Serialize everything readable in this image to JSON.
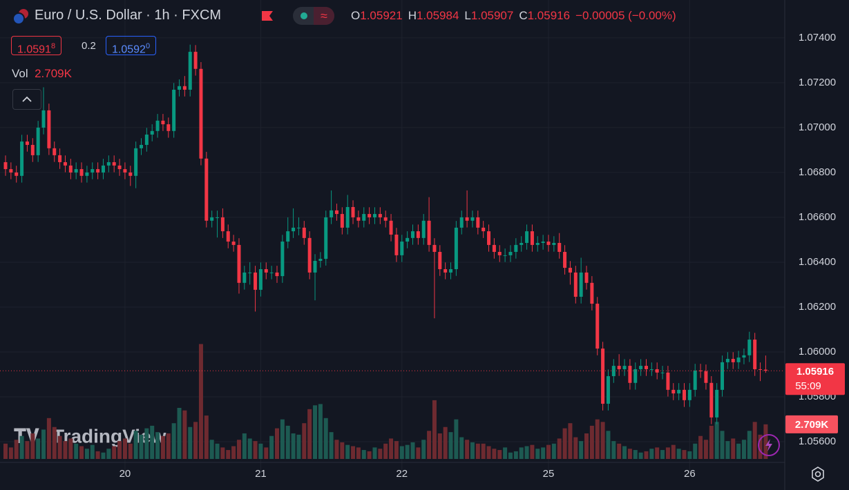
{
  "header": {
    "symbol": "Euro / U.S. Dollar · 1h · FXCM",
    "ohlc": [
      {
        "label": "O",
        "value": "1.05921"
      },
      {
        "label": "H",
        "value": "1.05984"
      },
      {
        "label": "L",
        "value": "1.05907"
      },
      {
        "label": "C",
        "value": "1.05916"
      }
    ],
    "change": "−0.00005 (−0.00%)",
    "bid": {
      "main": "1.0591",
      "pip": "8"
    },
    "spread": "0.2",
    "ask": {
      "main": "1.0592",
      "pip": "0"
    },
    "volume_label": "Vol",
    "volume_value": "2.709K"
  },
  "chart_data": {
    "type": "candlestick",
    "categories": [
      null,
      null,
      null,
      null,
      null,
      null,
      null,
      null,
      null,
      null,
      null,
      null,
      null,
      null,
      null,
      null,
      null,
      null,
      null,
      null,
      null,
      null,
      "20",
      null,
      null,
      null,
      null,
      null,
      null,
      null,
      null,
      null,
      null,
      null,
      null,
      null,
      null,
      null,
      null,
      null,
      null,
      null,
      null,
      null,
      null,
      null,
      null,
      "21",
      null,
      null,
      null,
      null,
      null,
      null,
      null,
      null,
      null,
      null,
      null,
      null,
      null,
      null,
      null,
      null,
      null,
      null,
      null,
      null,
      null,
      null,
      null,
      null,
      null,
      "22",
      null,
      null,
      null,
      null,
      null,
      null,
      null,
      null,
      null,
      null,
      null,
      null,
      null,
      null,
      null,
      null,
      null,
      null,
      null,
      null,
      null,
      null,
      null,
      null,
      null,
      null,
      "25",
      null,
      null,
      null,
      null,
      null,
      null,
      null,
      null,
      null,
      null,
      null,
      null,
      null,
      null,
      null,
      null,
      null,
      null,
      null,
      null,
      null,
      null,
      null,
      null,
      null,
      "26",
      null,
      null,
      null,
      null,
      null,
      null,
      null,
      null,
      null,
      null,
      null,
      null,
      null,
      null
    ],
    "open": [
      1.06846,
      1.06815,
      1.068,
      1.06785,
      1.06938,
      1.06923,
      1.06877,
      1.07,
      1.07077,
      1.06908,
      1.06877,
      1.06846,
      1.06831,
      1.068,
      1.06815,
      1.06785,
      1.068,
      1.06815,
      1.068,
      1.06831,
      1.06846,
      1.06831,
      1.06815,
      1.068,
      1.06785,
      1.06908,
      1.06923,
      1.06969,
      1.06985,
      1.07031,
      1.07015,
      1.06985,
      1.07169,
      1.07185,
      1.07169,
      1.07338,
      1.07262,
      1.06862,
      1.06585,
      1.066,
      1.066,
      1.06538,
      1.06492,
      1.06477,
      1.06308,
      1.06354,
      1.06354,
      1.06277,
      1.06369,
      1.06354,
      1.06354,
      1.06338,
      1.06492,
      1.06538,
      1.06554,
      1.06554,
      1.06508,
      1.06354,
      1.06406,
      1.06415,
      1.066,
      1.06631,
      1.06615,
      1.06554,
      1.06646,
      1.066,
      1.06585,
      1.06615,
      1.066,
      1.06615,
      1.066,
      1.06585,
      1.06523,
      1.06431,
      1.06492,
      1.06508,
      1.06538,
      1.06508,
      1.06585,
      1.06477,
      1.06446,
      1.06369,
      1.06354,
      1.06369,
      1.06554,
      1.066,
      1.06585,
      1.066,
      1.06554,
      1.06538,
      1.06477,
      1.06446,
      1.06431,
      1.06431,
      1.06446,
      1.06477,
      1.06486,
      1.06538,
      1.06477,
      1.06486,
      1.06492,
      1.06477,
      1.06486,
      1.06446,
      1.06375,
      1.06354,
      1.06246,
      1.06354,
      1.06308,
      1.06215,
      1.06015,
      1.05769,
      1.05892,
      1.05938,
      1.05923,
      1.05938,
      1.05862,
      1.05923,
      1.05938,
      1.05923,
      1.05923,
      1.05908,
      1.05908,
      1.05831,
      1.05815,
      1.05831,
      1.05785,
      1.05831,
      1.05917,
      1.05914,
      1.05862,
      1.05708,
      1.05831,
      1.05954,
      1.05969,
      1.05954,
      1.05975,
      1.05985,
      1.06055,
      1.05923,
      1.05921
    ],
    "high": [
      1.06876,
      1.06845,
      1.0683,
      1.06968,
      1.06968,
      1.06953,
      1.0703,
      1.0718,
      1.07107,
      1.06938,
      1.06907,
      1.06876,
      1.06861,
      1.06845,
      1.06845,
      1.0683,
      1.06845,
      1.06845,
      1.06861,
      1.06876,
      1.06876,
      1.06861,
      1.06845,
      1.0683,
      1.06938,
      1.06953,
      1.06999,
      1.07015,
      1.07061,
      1.07061,
      1.07045,
      1.07199,
      1.07215,
      1.0723,
      1.0737,
      1.07368,
      1.07292,
      1.06892,
      1.0663,
      1.0663,
      1.0664,
      1.06568,
      1.06522,
      1.06507,
      1.06384,
      1.064,
      1.06384,
      1.06399,
      1.06399,
      1.06384,
      1.06384,
      1.06522,
      1.066,
      1.0664,
      1.066,
      1.06584,
      1.06538,
      1.06436,
      1.06445,
      1.0663,
      1.0672,
      1.06661,
      1.06645,
      1.067,
      1.06676,
      1.0663,
      1.06645,
      1.06645,
      1.06645,
      1.06645,
      1.0663,
      1.06615,
      1.06553,
      1.06522,
      1.06538,
      1.06568,
      1.06568,
      1.06615,
      1.0669,
      1.06507,
      1.06476,
      1.06399,
      1.06399,
      1.06584,
      1.0663,
      1.0672,
      1.0663,
      1.0663,
      1.06584,
      1.06568,
      1.06507,
      1.06476,
      1.06461,
      1.06476,
      1.06507,
      1.06516,
      1.06568,
      1.06568,
      1.06516,
      1.06522,
      1.06522,
      1.06516,
      1.0653,
      1.06476,
      1.06405,
      1.06384,
      1.0642,
      1.06384,
      1.06338,
      1.06245,
      1.06045,
      1.05922,
      1.05968,
      1.0599,
      1.05968,
      1.05968,
      1.05953,
      1.05968,
      1.05968,
      1.05953,
      1.05953,
      1.05938,
      1.05938,
      1.05861,
      1.05861,
      1.05861,
      1.05861,
      1.05947,
      1.05947,
      1.05944,
      1.05892,
      1.05861,
      1.05984,
      1.05999,
      1.05999,
      1.06005,
      1.06015,
      1.0609,
      1.06085,
      1.05953,
      1.05984
    ],
    "low": [
      1.06785,
      1.0677,
      1.06755,
      1.06755,
      1.06893,
      1.06847,
      1.06847,
      1.0697,
      1.06878,
      1.06847,
      1.06816,
      1.06801,
      1.0677,
      1.0677,
      1.06755,
      1.06755,
      1.0677,
      1.0677,
      1.0677,
      1.06801,
      1.06801,
      1.06785,
      1.0677,
      1.0674,
      1.0673,
      1.06878,
      1.06893,
      1.06939,
      1.06955,
      1.06985,
      1.06955,
      1.06955,
      1.07139,
      1.07139,
      1.07139,
      1.07232,
      1.06832,
      1.06555,
      1.06555,
      1.0651,
      1.06508,
      1.06462,
      1.06447,
      1.0626,
      1.06278,
      1.063,
      1.0618,
      1.06247,
      1.06324,
      1.06324,
      1.06308,
      1.06308,
      1.06462,
      1.06508,
      1.0652,
      1.06478,
      1.06324,
      1.0623,
      1.06376,
      1.06385,
      1.0657,
      1.06585,
      1.06524,
      1.06524,
      1.0657,
      1.06555,
      1.06555,
      1.0657,
      1.0657,
      1.0657,
      1.06555,
      1.06493,
      1.06401,
      1.06401,
      1.06462,
      1.06478,
      1.06478,
      1.06478,
      1.06447,
      1.0615,
      1.06339,
      1.06324,
      1.06324,
      1.06339,
      1.06524,
      1.06555,
      1.06555,
      1.06524,
      1.06508,
      1.06447,
      1.06416,
      1.06401,
      1.06401,
      1.06401,
      1.06416,
      1.06447,
      1.06456,
      1.06447,
      1.06447,
      1.06456,
      1.06447,
      1.06447,
      1.06416,
      1.06345,
      1.063,
      1.06216,
      1.06216,
      1.06278,
      1.06185,
      1.05985,
      1.05739,
      1.05739,
      1.05862,
      1.05893,
      1.05893,
      1.05832,
      1.05832,
      1.05893,
      1.05893,
      1.05893,
      1.05878,
      1.05878,
      1.05801,
      1.05785,
      1.05785,
      1.05755,
      1.05755,
      1.05801,
      1.05884,
      1.05832,
      1.05678,
      1.05678,
      1.05801,
      1.05924,
      1.05924,
      1.05924,
      1.05945,
      1.05955,
      1.05893,
      1.0587,
      1.05907
    ],
    "close": [
      1.06815,
      1.068,
      1.06785,
      1.06938,
      1.06923,
      1.06877,
      1.07,
      1.07077,
      1.06908,
      1.06877,
      1.06846,
      1.06831,
      1.068,
      1.06815,
      1.06785,
      1.068,
      1.06815,
      1.068,
      1.06831,
      1.06846,
      1.06831,
      1.06815,
      1.068,
      1.06785,
      1.06908,
      1.06923,
      1.06969,
      1.06985,
      1.07031,
      1.07015,
      1.06985,
      1.07169,
      1.07185,
      1.07169,
      1.07338,
      1.07262,
      1.06862,
      1.06585,
      1.066,
      1.066,
      1.06538,
      1.06492,
      1.06477,
      1.06308,
      1.06354,
      1.06354,
      1.06277,
      1.06369,
      1.06354,
      1.06354,
      1.06338,
      1.06492,
      1.06538,
      1.06554,
      1.06554,
      1.06508,
      1.06354,
      1.06406,
      1.06415,
      1.066,
      1.06631,
      1.06615,
      1.06554,
      1.06646,
      1.066,
      1.06585,
      1.06615,
      1.066,
      1.06615,
      1.066,
      1.06585,
      1.06523,
      1.06431,
      1.06492,
      1.06508,
      1.06538,
      1.06508,
      1.06585,
      1.06477,
      1.06446,
      1.06369,
      1.06354,
      1.06369,
      1.06554,
      1.066,
      1.06585,
      1.066,
      1.06554,
      1.06538,
      1.06477,
      1.06446,
      1.06431,
      1.06431,
      1.06446,
      1.06477,
      1.06486,
      1.06538,
      1.06477,
      1.06486,
      1.06492,
      1.06477,
      1.06486,
      1.06446,
      1.06375,
      1.06354,
      1.06246,
      1.06354,
      1.06308,
      1.06215,
      1.06015,
      1.05769,
      1.05892,
      1.05938,
      1.05923,
      1.05938,
      1.05862,
      1.05923,
      1.05938,
      1.05923,
      1.05923,
      1.05908,
      1.05908,
      1.05831,
      1.05815,
      1.05831,
      1.05785,
      1.05831,
      1.05917,
      1.05914,
      1.05862,
      1.05708,
      1.05831,
      1.05954,
      1.05969,
      1.05954,
      1.05975,
      1.05985,
      1.06055,
      1.05923,
      1.05921,
      1.05916
    ],
    "volume": [
      1.2,
      0.9,
      1.5,
      1.8,
      1.4,
      2.0,
      1.6,
      2.3,
      3.2,
      2.5,
      1.8,
      1.4,
      1.6,
      1.2,
      1.0,
      0.8,
      1.1,
      0.6,
      0.5,
      0.8,
      1.0,
      1.4,
      1.6,
      1.2,
      2.2,
      1.9,
      2.4,
      2.6,
      2.1,
      1.8,
      2.0,
      2.8,
      4.0,
      3.8,
      2.5,
      2.9,
      9.0,
      3.4,
      1.5,
      1.2,
      0.9,
      0.7,
      1.0,
      1.5,
      2.0,
      1.6,
      1.4,
      1.2,
      0.9,
      1.8,
      2.4,
      3.1,
      2.6,
      2.0,
      1.9,
      2.8,
      3.9,
      4.2,
      4.3,
      3.2,
      2.1,
      1.5,
      1.3,
      1.1,
      1.0,
      0.9,
      0.7,
      0.6,
      0.9,
      0.8,
      1.2,
      1.6,
      1.4,
      1.0,
      1.1,
      1.3,
      0.9,
      1.5,
      2.2,
      4.6,
      2.0,
      2.5,
      2.1,
      3.1,
      1.7,
      1.5,
      1.3,
      1.2,
      1.2,
      1.0,
      0.8,
      0.7,
      0.9,
      0.5,
      0.6,
      0.9,
      1.0,
      1.1,
      0.8,
      0.9,
      1.1,
      1.2,
      1.6,
      2.4,
      2.8,
      1.7,
      1.4,
      2.0,
      2.6,
      3.1,
      2.9,
      2.2,
      1.4,
      1.2,
      1.0,
      0.8,
      0.7,
      0.5,
      0.6,
      0.8,
      0.9,
      0.7,
      0.9,
      1.1,
      0.8,
      0.7,
      0.6,
      1.2,
      1.8,
      1.5,
      2.6,
      2.9,
      2.2,
      1.4,
      1.6,
      1.2,
      1.5,
      2.2,
      2.9,
      1.9,
      2.709
    ],
    "volume_lim": [
      0,
      10
    ],
    "ylim": [
      1.05446,
      1.07569
    ],
    "yticks": [
      {
        "value": 1.074,
        "label": "1.07400"
      },
      {
        "value": 1.072,
        "label": "1.07200"
      },
      {
        "value": 1.07,
        "label": "1.07000"
      },
      {
        "value": 1.068,
        "label": "1.06800"
      },
      {
        "value": 1.066,
        "label": "1.06600"
      },
      {
        "value": 1.064,
        "label": "1.06400"
      },
      {
        "value": 1.062,
        "label": "1.06200"
      },
      {
        "value": 1.06,
        "label": "1.06000"
      },
      {
        "value": 1.058,
        "label": "1.05800"
      },
      {
        "value": 1.056,
        "label": "1.05600"
      }
    ],
    "grid": true,
    "up_color": "#089981",
    "down_color": "#f23645",
    "up_volume_color": "#1d5a52",
    "down_volume_color": "#6e2a30",
    "last_price_label": "1.05916",
    "countdown": "55:09",
    "last_volume_label": "2.709K",
    "watermark": "TradingView"
  }
}
